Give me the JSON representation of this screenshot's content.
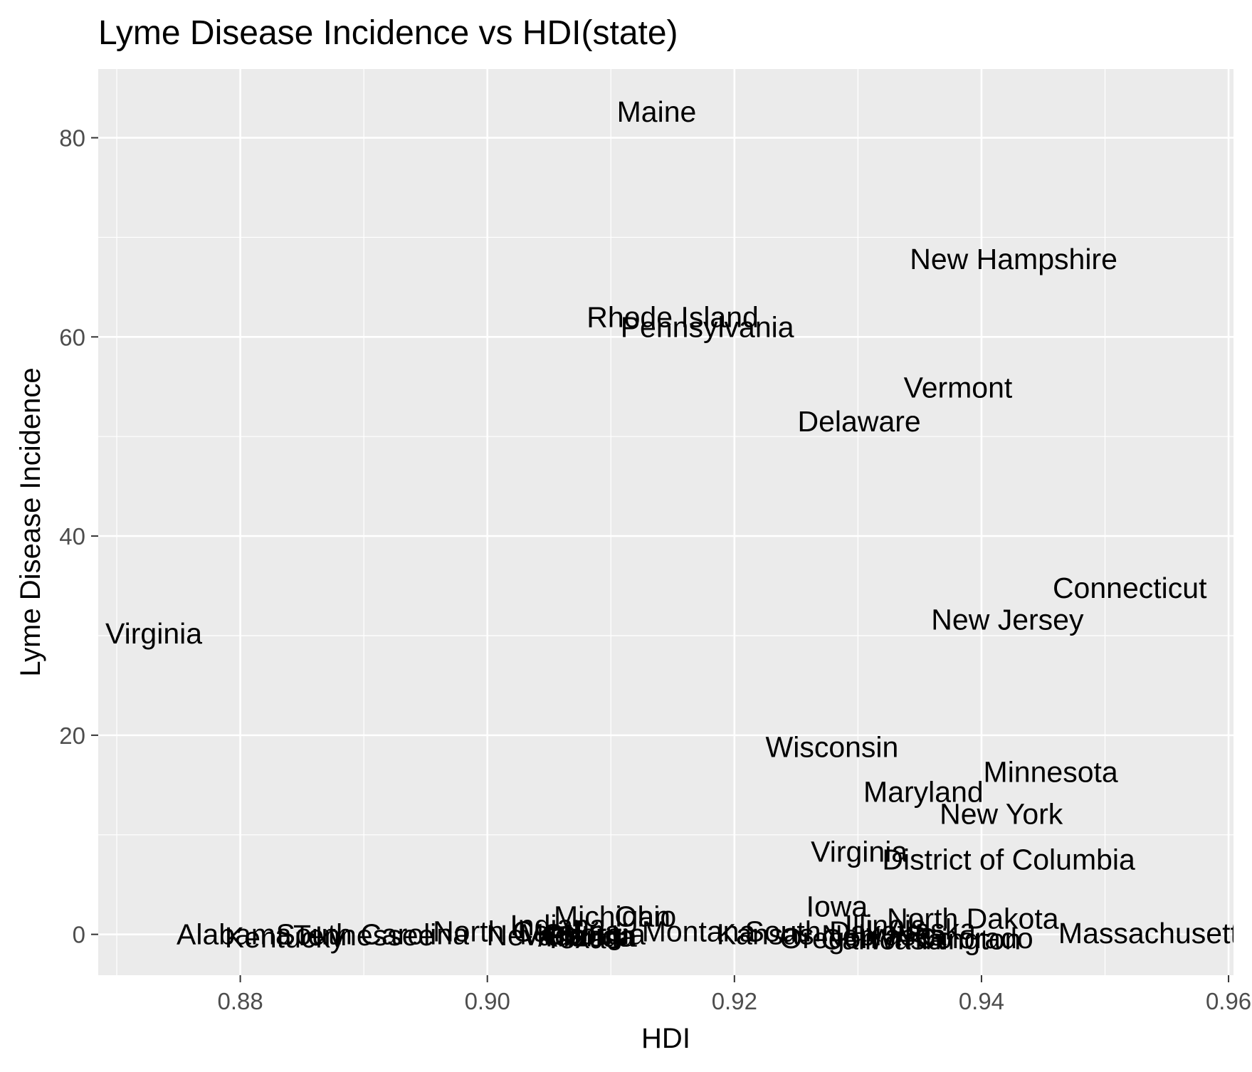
{
  "colors": {
    "panel": "#ebebeb",
    "grid": "#ffffff",
    "text": "#000000",
    "tick_text": "#4d4d4d"
  },
  "chart_data": {
    "type": "scatter",
    "marker": "text-label",
    "title": "Lyme Disease Incidence vs HDI(state)",
    "xlabel": "HDI",
    "ylabel": "Lyme Disease Incidence",
    "xlim": [
      0.8685,
      0.9604
    ],
    "ylim": [
      -4.1,
      86.9
    ],
    "xticks": [
      0.88,
      0.9,
      0.92,
      0.94,
      0.96
    ],
    "xtick_labels": [
      "0.88",
      "0.90",
      "0.92",
      "0.94",
      "0.96"
    ],
    "yticks": [
      0,
      20,
      40,
      60,
      80
    ],
    "ytick_labels": [
      "0",
      "20",
      "40",
      "60",
      "80"
    ],
    "grid": true,
    "points": [
      {
        "label": "Maine",
        "x": 0.9137,
        "y": 82.6
      },
      {
        "label": "New Hampshire",
        "x": 0.9426,
        "y": 67.8
      },
      {
        "label": "Rhode Island",
        "x": 0.915,
        "y": 62.0
      },
      {
        "label": "Pennsylvania",
        "x": 0.9178,
        "y": 61.0
      },
      {
        "label": "Vermont",
        "x": 0.9381,
        "y": 54.9
      },
      {
        "label": "Delaware",
        "x": 0.9301,
        "y": 51.5
      },
      {
        "label": "Connecticut",
        "x": 0.952,
        "y": 34.8
      },
      {
        "label": "New Jersey",
        "x": 0.9421,
        "y": 31.6
      },
      {
        "label": "West Virginia",
        "x": 0.87,
        "y": 30.2
      },
      {
        "label": "Wisconsin",
        "x": 0.9279,
        "y": 18.8
      },
      {
        "label": "Minnesota",
        "x": 0.9456,
        "y": 16.3
      },
      {
        "label": "Maryland",
        "x": 0.9353,
        "y": 14.3
      },
      {
        "label": "New York",
        "x": 0.9416,
        "y": 12.1
      },
      {
        "label": "Virginia",
        "x": 0.9301,
        "y": 8.3
      },
      {
        "label": "District of Columbia",
        "x": 0.9422,
        "y": 7.5
      },
      {
        "label": "Iowa",
        "x": 0.9283,
        "y": 2.8
      },
      {
        "label": "North Dakota",
        "x": 0.9393,
        "y": 1.6
      },
      {
        "label": "Illinois",
        "x": 0.9322,
        "y": 0.9
      },
      {
        "label": "Alaska",
        "x": 0.936,
        "y": 0.5
      },
      {
        "label": "Ohio",
        "x": 0.9128,
        "y": 1.8
      },
      {
        "label": "Michigan",
        "x": 0.9101,
        "y": 1.8
      },
      {
        "label": "Indiana",
        "x": 0.9057,
        "y": 0.9
      },
      {
        "label": "Montana",
        "x": 0.9171,
        "y": 0.3
      },
      {
        "label": "Kansas",
        "x": 0.9225,
        "y": 0.0
      },
      {
        "label": "South Dakota",
        "x": 0.928,
        "y": 0.3
      },
      {
        "label": "Nebraska",
        "x": 0.9321,
        "y": -0.1
      },
      {
        "label": "Oregon",
        "x": 0.9276,
        "y": -0.4
      },
      {
        "label": "California",
        "x": 0.932,
        "y": -0.5
      },
      {
        "label": "Washington",
        "x": 0.937,
        "y": -0.5
      },
      {
        "label": "Colorado",
        "x": 0.9394,
        "y": -0.4
      },
      {
        "label": "Massachusetts",
        "x": 0.9541,
        "y": 0.1
      },
      {
        "label": "North Carolina",
        "x": 0.9032,
        "y": 0.3
      },
      {
        "label": "Alabama",
        "x": 0.8795,
        "y": 0.0
      },
      {
        "label": "South Carolina",
        "x": 0.8907,
        "y": 0.0
      },
      {
        "label": "Tennessee",
        "x": 0.89,
        "y": -0.1
      },
      {
        "label": "Kentucky",
        "x": 0.8836,
        "y": -0.3
      },
      {
        "label": "Nevada",
        "x": 0.904,
        "y": -0.1
      },
      {
        "label": "Arizona",
        "x": 0.9081,
        "y": -0.2
      },
      {
        "label": "Missouri",
        "x": 0.907,
        "y": 0.0
      },
      {
        "label": "Texas",
        "x": 0.9077,
        "y": -0.4
      },
      {
        "label": "Florida",
        "x": 0.9083,
        "y": -0.2
      },
      {
        "label": "Georgia",
        "x": 0.9086,
        "y": 0.0
      }
    ]
  }
}
